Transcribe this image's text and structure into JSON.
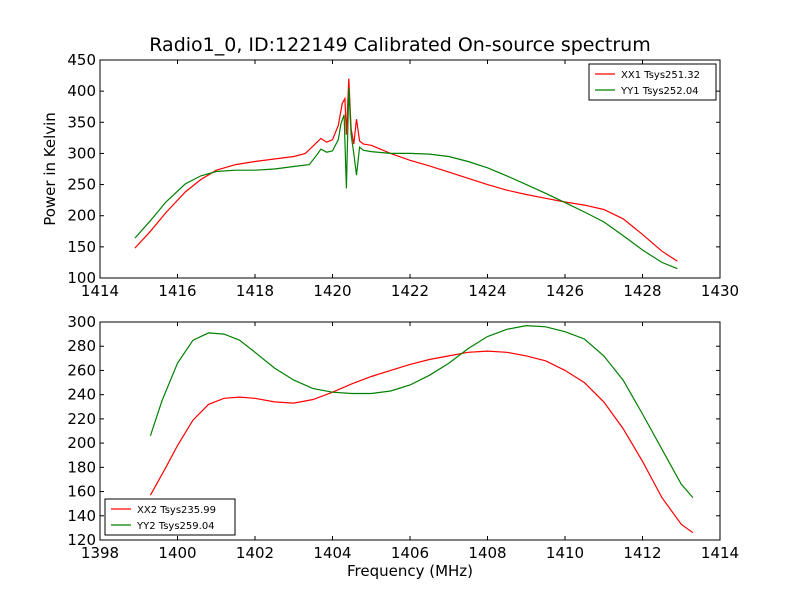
{
  "chart_data": [
    {
      "type": "line",
      "title": "Radio1_0, ID:122149 Calibrated On-source spectrum",
      "xlabel": "",
      "ylabel": "Power in Kelvin",
      "xlim": [
        1414,
        1430
      ],
      "ylim": [
        100,
        450
      ],
      "xticks": [
        "1414",
        "1416",
        "1418",
        "1420",
        "1422",
        "1424",
        "1426",
        "1428",
        "1430"
      ],
      "yticks": [
        "100",
        "150",
        "200",
        "250",
        "300",
        "350",
        "400",
        "450"
      ],
      "legend_position": "top-right",
      "grid": false,
      "series": [
        {
          "name": "XX1 Tsys251.32",
          "color": "#ff0000",
          "x": [
            1414.9,
            1415.3,
            1415.7,
            1416.2,
            1416.6,
            1417.0,
            1417.5,
            1418.0,
            1418.5,
            1419.0,
            1419.3,
            1419.55,
            1419.7,
            1419.85,
            1420.0,
            1420.15,
            1420.25,
            1420.32,
            1420.36,
            1420.42,
            1420.48,
            1420.55,
            1420.62,
            1420.7,
            1420.8,
            1421.0,
            1421.5,
            1422.0,
            1422.5,
            1423.0,
            1423.5,
            1424.0,
            1424.5,
            1425.0,
            1425.5,
            1426.0,
            1426.5,
            1427.0,
            1427.5,
            1428.0,
            1428.5,
            1428.9
          ],
          "y": [
            148,
            175,
            205,
            238,
            258,
            273,
            282,
            287,
            291,
            295,
            300,
            315,
            324,
            318,
            322,
            345,
            380,
            388,
            330,
            420,
            340,
            315,
            355,
            320,
            315,
            313,
            300,
            289,
            280,
            270,
            260,
            250,
            241,
            234,
            228,
            222,
            217,
            210,
            195,
            170,
            143,
            127
          ]
        },
        {
          "name": "YY1 Tsys252.04",
          "color": "#008000",
          "x": [
            1414.9,
            1415.3,
            1415.7,
            1416.2,
            1416.6,
            1417.0,
            1417.5,
            1418.0,
            1418.5,
            1419.0,
            1419.4,
            1419.6,
            1419.7,
            1419.85,
            1420.0,
            1420.15,
            1420.22,
            1420.3,
            1420.36,
            1420.42,
            1420.48,
            1420.55,
            1420.62,
            1420.7,
            1420.8,
            1421.0,
            1421.5,
            1422.0,
            1422.5,
            1423.0,
            1423.5,
            1424.0,
            1424.5,
            1425.0,
            1425.5,
            1426.0,
            1426.5,
            1427.0,
            1427.5,
            1428.0,
            1428.5,
            1428.9
          ],
          "y": [
            164,
            192,
            222,
            251,
            264,
            271,
            273,
            273,
            275,
            279,
            282,
            298,
            307,
            302,
            304,
            322,
            348,
            362,
            244,
            405,
            330,
            300,
            265,
            310,
            305,
            303,
            300,
            300,
            299,
            295,
            287,
            277,
            264,
            250,
            236,
            221,
            206,
            190,
            168,
            145,
            125,
            115
          ]
        }
      ]
    },
    {
      "type": "line",
      "title": "",
      "xlabel": "Frequency (MHz)",
      "ylabel": "",
      "xlim": [
        1398,
        1414
      ],
      "ylim": [
        120,
        300
      ],
      "xticks": [
        "1398",
        "1400",
        "1402",
        "1404",
        "1406",
        "1408",
        "1410",
        "1412",
        "1414"
      ],
      "yticks": [
        "120",
        "140",
        "160",
        "180",
        "200",
        "220",
        "240",
        "260",
        "280",
        "300"
      ],
      "legend_position": "bottom-left",
      "grid": false,
      "series": [
        {
          "name": "XX2 Tsys235.99",
          "color": "#ff0000",
          "x": [
            1399.3,
            1399.7,
            1400.0,
            1400.4,
            1400.8,
            1401.2,
            1401.6,
            1402.0,
            1402.5,
            1403.0,
            1403.5,
            1404.0,
            1404.5,
            1405.0,
            1405.5,
            1406.0,
            1406.5,
            1407.0,
            1407.5,
            1408.0,
            1408.5,
            1409.0,
            1409.5,
            1410.0,
            1410.5,
            1411.0,
            1411.5,
            1412.0,
            1412.5,
            1413.0,
            1413.3
          ],
          "y": [
            157,
            180,
            198,
            219,
            232,
            237,
            238,
            237,
            234,
            233,
            236,
            242,
            249,
            255,
            260,
            265,
            269,
            272,
            275,
            276,
            275,
            272,
            268,
            260,
            250,
            234,
            212,
            185,
            155,
            133,
            126
          ]
        },
        {
          "name": "YY2 Tsys259.04",
          "color": "#008000",
          "x": [
            1399.3,
            1399.6,
            1400.0,
            1400.4,
            1400.8,
            1401.2,
            1401.6,
            1402.0,
            1402.5,
            1403.0,
            1403.5,
            1404.0,
            1404.5,
            1405.0,
            1405.5,
            1406.0,
            1406.5,
            1407.0,
            1407.5,
            1408.0,
            1408.5,
            1409.0,
            1409.5,
            1410.0,
            1410.5,
            1411.0,
            1411.5,
            1412.0,
            1412.5,
            1413.0,
            1413.3
          ],
          "y": [
            206,
            235,
            266,
            285,
            291,
            290,
            285,
            275,
            262,
            252,
            245,
            242,
            241,
            241,
            243,
            248,
            256,
            266,
            278,
            288,
            294,
            297,
            296,
            292,
            286,
            272,
            252,
            224,
            195,
            166,
            155
          ]
        }
      ]
    }
  ]
}
